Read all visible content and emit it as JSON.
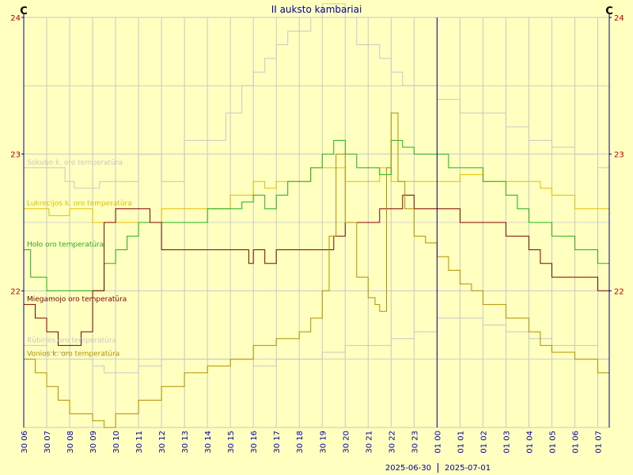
{
  "colors": {
    "background": "#FFFFC0",
    "grid": "#C8C8C8",
    "axis": "#000080",
    "yticks": "#C00000",
    "xticks": "#0000A0"
  },
  "chart_data": {
    "type": "line",
    "title": "II auksto kambariai",
    "unit_left": "C",
    "unit_right": "C",
    "ylim": [
      21,
      24
    ],
    "yticks": [
      {
        "label": "22",
        "value": 22
      },
      {
        "label": "23",
        "value": 23
      },
      {
        "label": "24",
        "value": 24
      }
    ],
    "xlim": [
      6,
      31.5
    ],
    "xticks": [
      {
        "label": "30 06",
        "value": 6
      },
      {
        "label": "30 07",
        "value": 7
      },
      {
        "label": "30 08",
        "value": 8
      },
      {
        "label": "30 09",
        "value": 9
      },
      {
        "label": "30 10",
        "value": 10
      },
      {
        "label": "30 11",
        "value": 11
      },
      {
        "label": "30 12",
        "value": 12
      },
      {
        "label": "30 13",
        "value": 13
      },
      {
        "label": "30 14",
        "value": 14
      },
      {
        "label": "30 15",
        "value": 15
      },
      {
        "label": "30 16",
        "value": 16
      },
      {
        "label": "30 17",
        "value": 17
      },
      {
        "label": "30 18",
        "value": 18
      },
      {
        "label": "30 19",
        "value": 19
      },
      {
        "label": "30 20",
        "value": 20
      },
      {
        "label": "30 21",
        "value": 21
      },
      {
        "label": "30 22",
        "value": 22
      },
      {
        "label": "30 23",
        "value": 23
      },
      {
        "label": "01 00",
        "value": 24
      },
      {
        "label": "01 01",
        "value": 25
      },
      {
        "label": "01 02",
        "value": 26
      },
      {
        "label": "01 03",
        "value": 27
      },
      {
        "label": "01 04",
        "value": 28
      },
      {
        "label": "01 05",
        "value": 29
      },
      {
        "label": "01 06",
        "value": 30
      },
      {
        "label": "01 07",
        "value": 31
      }
    ],
    "day_divider": 24,
    "date_left": "2025-06-30",
    "date_right": "2025-07-01",
    "grid": true,
    "series": [
      {
        "name": "Sokubo k. oro temperatūra",
        "color": "#C8C8C8",
        "x": [
          6,
          7.5,
          7.8,
          8.2,
          8.8,
          9.3,
          10,
          11,
          12,
          13,
          14,
          14.8,
          15.5,
          16,
          16.5,
          17,
          17.5,
          18,
          18.5,
          19,
          19.5,
          20,
          20.5,
          21,
          21.5,
          22,
          22.5,
          23,
          23.5,
          24,
          25,
          26,
          27,
          28,
          29,
          30,
          31,
          31.5
        ],
        "y": [
          22.9,
          22.9,
          22.8,
          22.75,
          22.75,
          22.8,
          22.8,
          23,
          22.8,
          23.1,
          23.1,
          23.3,
          23.5,
          23.6,
          23.7,
          23.8,
          23.9,
          23.9,
          24,
          24.1,
          24.1,
          24,
          23.8,
          23.8,
          23.7,
          23.6,
          23.5,
          23.5,
          23.5,
          23.4,
          23.3,
          23.3,
          23.2,
          23.1,
          23.05,
          23.0,
          22.9,
          22.9
        ]
      },
      {
        "name": "Lukrecijos k. oro temperatūra",
        "color": "#E0C000",
        "x": [
          6,
          7,
          7.1,
          8,
          8.5,
          9,
          9.5,
          10,
          11,
          12,
          13,
          14,
          15,
          15.5,
          16,
          16.5,
          17,
          18,
          18.5,
          19,
          19.5,
          20,
          21,
          21.5,
          22,
          23,
          24,
          25,
          26,
          27,
          28,
          28.5,
          29,
          30,
          31,
          31.5
        ],
        "y": [
          22.6,
          22.6,
          22.55,
          22.6,
          22.6,
          22.5,
          22.5,
          22.5,
          22.5,
          22.6,
          22.6,
          22.6,
          22.7,
          22.7,
          22.8,
          22.75,
          22.8,
          22.8,
          22.9,
          22.9,
          22.9,
          22.8,
          22.8,
          22.9,
          22.8,
          22.8,
          22.8,
          22.85,
          22.8,
          22.8,
          22.8,
          22.75,
          22.7,
          22.6,
          22.6,
          22.6
        ]
      },
      {
        "name": "Holo oro temperatūra",
        "color": "#20B020",
        "x": [
          6,
          6.3,
          7,
          8,
          9,
          9.5,
          10,
          10.5,
          11,
          12,
          13,
          14,
          15,
          15.5,
          16,
          16.5,
          17,
          17.5,
          18,
          18.5,
          19,
          19.5,
          20,
          20.5,
          21,
          21.5,
          22,
          22.5,
          23,
          24,
          24.5,
          25,
          26,
          27,
          27.5,
          28,
          28.5,
          29,
          30,
          31,
          31.5
        ],
        "y": [
          22.3,
          22.1,
          22.0,
          22.0,
          22.0,
          22.2,
          22.3,
          22.4,
          22.5,
          22.5,
          22.5,
          22.6,
          22.6,
          22.65,
          22.7,
          22.6,
          22.7,
          22.8,
          22.8,
          22.9,
          23.0,
          23.1,
          23.0,
          22.9,
          22.9,
          22.85,
          23.1,
          23.05,
          23.0,
          23.0,
          22.9,
          22.9,
          22.8,
          22.7,
          22.6,
          22.5,
          22.5,
          22.4,
          22.3,
          22.2,
          22.1
        ]
      },
      {
        "name": "Miegamojo oro temperatūra",
        "color": "#800000",
        "x": [
          6,
          6.5,
          7,
          7.5,
          8,
          8.5,
          9,
          9.5,
          10,
          10.5,
          11,
          11.5,
          12,
          13,
          14,
          15,
          15.8,
          16,
          16.5,
          17,
          18,
          19,
          19.5,
          20,
          20.5,
          21,
          21.5,
          22,
          22.5,
          23,
          23.5,
          24,
          25,
          26,
          27,
          28,
          28.5,
          29,
          30,
          31,
          31.5
        ],
        "y": [
          21.9,
          21.8,
          21.7,
          21.6,
          21.6,
          21.7,
          22.0,
          22.5,
          22.6,
          22.6,
          22.6,
          22.5,
          22.3,
          22.3,
          22.3,
          22.3,
          22.2,
          22.3,
          22.2,
          22.3,
          22.3,
          22.3,
          22.4,
          22.5,
          22.5,
          22.5,
          22.6,
          22.6,
          22.7,
          22.6,
          22.6,
          22.6,
          22.5,
          22.5,
          22.4,
          22.3,
          22.2,
          22.1,
          22.1,
          22.0,
          21.9
        ]
      },
      {
        "name": "Rūbinės oro temperatūra",
        "color": "#C8C8C8",
        "x": [
          6,
          7,
          8,
          9,
          9.5,
          10,
          11,
          12,
          13,
          14,
          15,
          16,
          17,
          18,
          19,
          20,
          21,
          22,
          23,
          24,
          25,
          26,
          27,
          28,
          29,
          30,
          31,
          31.5
        ],
        "y": [
          21.6,
          21.55,
          21.5,
          21.45,
          21.4,
          21.4,
          21.45,
          21.5,
          21.5,
          21.5,
          21.5,
          21.45,
          21.5,
          21.5,
          21.55,
          21.6,
          21.6,
          21.65,
          21.7,
          21.8,
          21.8,
          21.75,
          21.7,
          21.65,
          21.6,
          21.6,
          21.5,
          21.5
        ]
      },
      {
        "name": "Vonios k. oro temperatūra",
        "color": "#B09000",
        "x": [
          6,
          6.5,
          7,
          7.5,
          8,
          8.5,
          9,
          9.5,
          10,
          11,
          12,
          13,
          14,
          15,
          16,
          17,
          18,
          18.5,
          19,
          19.3,
          19.6,
          20,
          20.5,
          21,
          21.3,
          21.5,
          21.8,
          22,
          22.3,
          22.6,
          23,
          23.5,
          24,
          24.5,
          25,
          25.5,
          26,
          27,
          28,
          28.5,
          29,
          30,
          31,
          31.5
        ],
        "y": [
          21.5,
          21.4,
          21.3,
          21.2,
          21.1,
          21.1,
          21.05,
          21.0,
          21.1,
          21.2,
          21.3,
          21.4,
          21.45,
          21.5,
          21.6,
          21.65,
          21.7,
          21.8,
          22.0,
          22.4,
          23.0,
          22.5,
          22.1,
          21.95,
          21.9,
          21.85,
          22.9,
          23.3,
          22.8,
          22.6,
          22.4,
          22.35,
          22.25,
          22.15,
          22.05,
          22.0,
          21.9,
          21.8,
          21.7,
          21.6,
          21.55,
          21.5,
          21.4,
          21.3
        ]
      }
    ]
  }
}
